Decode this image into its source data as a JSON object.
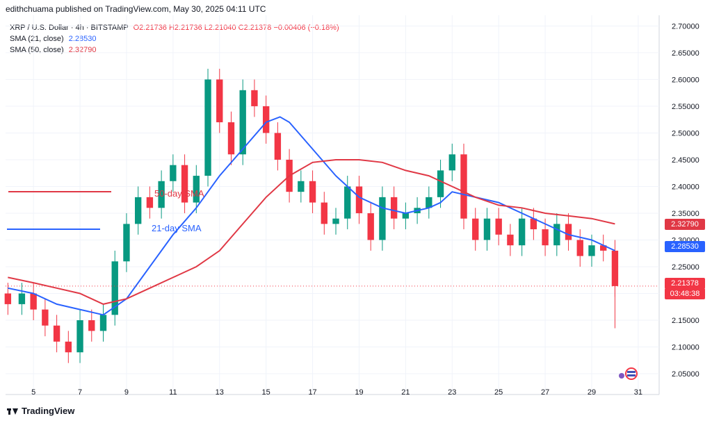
{
  "header": {
    "publisher": "edithchuama published on TradingView.com, May 30, 2025 04:11 UTC"
  },
  "legend": {
    "symbol": "XRP / U.S. Dollar · 4h · BITSTAMP",
    "ohlc": "O2.21736  H2.21736  L2.21040  C2.21378  −0.00406 (−0.18%)",
    "sma21_label": "SMA (21, close)",
    "sma21_value": "2.28530",
    "sma50_label": "SMA (50, close)",
    "sma50_value": "2.32790"
  },
  "colors": {
    "up": "#089981",
    "down": "#f23645",
    "sma21": "#2962ff",
    "sma50": "#e03845",
    "current_price": "#f23645",
    "grid": "#f0f3fa",
    "axis_text": "#131722"
  },
  "price_tags": {
    "sma50": "2.32790",
    "sma21": "2.28530",
    "last_price": "2.21378",
    "countdown": "03:48:38"
  },
  "annotations": {
    "sma50_label": "50-day SMA",
    "sma21_label": "21-day SMA"
  },
  "footer": {
    "brand": "TradingView"
  },
  "chart_data": {
    "type": "candlestick",
    "title": "XRP / U.S. Dollar · 4h · BITSTAMP",
    "x_ticks": [
      "5",
      "7",
      "9",
      "11",
      "13",
      "15",
      "17",
      "19",
      "21",
      "23",
      "25",
      "27",
      "29",
      "31"
    ],
    "x_tick_day": [
      5,
      7,
      9,
      11,
      13,
      15,
      17,
      19,
      21,
      23,
      25,
      27,
      29,
      31
    ],
    "x_range_day": [
      3.8,
      31.9
    ],
    "y_ticks": [
      "2.05000",
      "2.10000",
      "2.15000",
      "2.20000",
      "2.25000",
      "2.30000",
      "2.35000",
      "2.40000",
      "2.45000",
      "2.50000",
      "2.55000",
      "2.60000",
      "2.65000",
      "2.70000"
    ],
    "y_range": [
      2.015,
      2.72
    ],
    "grid": true,
    "current_price": 2.21378,
    "closes": [
      {
        "day": 3.9,
        "close": 2.18
      },
      {
        "day": 4.5,
        "close": 2.2
      },
      {
        "day": 5.0,
        "close": 2.17
      },
      {
        "day": 5.5,
        "close": 2.14
      },
      {
        "day": 6.0,
        "close": 2.11
      },
      {
        "day": 6.5,
        "close": 2.09
      },
      {
        "day": 7.0,
        "close": 2.15
      },
      {
        "day": 7.5,
        "close": 2.13
      },
      {
        "day": 8.0,
        "close": 2.16
      },
      {
        "day": 8.5,
        "close": 2.26
      },
      {
        "day": 9.0,
        "close": 2.33
      },
      {
        "day": 9.5,
        "close": 2.38
      },
      {
        "day": 10.0,
        "close": 2.36
      },
      {
        "day": 10.5,
        "close": 2.41
      },
      {
        "day": 11.0,
        "close": 2.44
      },
      {
        "day": 11.5,
        "close": 2.37
      },
      {
        "day": 12.0,
        "close": 2.42
      },
      {
        "day": 12.5,
        "close": 2.6
      },
      {
        "day": 13.0,
        "close": 2.52
      },
      {
        "day": 13.5,
        "close": 2.46
      },
      {
        "day": 14.0,
        "close": 2.58
      },
      {
        "day": 14.5,
        "close": 2.55
      },
      {
        "day": 15.0,
        "close": 2.5
      },
      {
        "day": 15.5,
        "close": 2.45
      },
      {
        "day": 16.0,
        "close": 2.39
      },
      {
        "day": 16.5,
        "close": 2.41
      },
      {
        "day": 17.0,
        "close": 2.37
      },
      {
        "day": 17.5,
        "close": 2.33
      },
      {
        "day": 18.0,
        "close": 2.34
      },
      {
        "day": 18.5,
        "close": 2.4
      },
      {
        "day": 19.0,
        "close": 2.35
      },
      {
        "day": 19.5,
        "close": 2.3
      },
      {
        "day": 20.0,
        "close": 2.38
      },
      {
        "day": 20.5,
        "close": 2.34
      },
      {
        "day": 21.0,
        "close": 2.35
      },
      {
        "day": 21.5,
        "close": 2.36
      },
      {
        "day": 22.0,
        "close": 2.38
      },
      {
        "day": 22.5,
        "close": 2.43
      },
      {
        "day": 23.0,
        "close": 2.46
      },
      {
        "day": 23.5,
        "close": 2.34
      },
      {
        "day": 24.0,
        "close": 2.3
      },
      {
        "day": 24.5,
        "close": 2.34
      },
      {
        "day": 25.0,
        "close": 2.31
      },
      {
        "day": 25.5,
        "close": 2.29
      },
      {
        "day": 26.0,
        "close": 2.34
      },
      {
        "day": 26.5,
        "close": 2.32
      },
      {
        "day": 27.0,
        "close": 2.29
      },
      {
        "day": 27.5,
        "close": 2.33
      },
      {
        "day": 28.0,
        "close": 2.3
      },
      {
        "day": 28.5,
        "close": 2.27
      },
      {
        "day": 29.0,
        "close": 2.29
      },
      {
        "day": 29.5,
        "close": 2.28
      },
      {
        "day": 30.0,
        "close": 2.21378
      }
    ],
    "low_wick": {
      "day": 30.0,
      "low": 2.135
    },
    "series": [
      {
        "name": "SMA (21, close)",
        "points": [
          [
            3.9,
            2.21
          ],
          [
            5.0,
            2.2
          ],
          [
            6.0,
            2.18
          ],
          [
            7.0,
            2.17
          ],
          [
            8.0,
            2.16
          ],
          [
            9.0,
            2.19
          ],
          [
            10.0,
            2.25
          ],
          [
            11.0,
            2.31
          ],
          [
            12.0,
            2.36
          ],
          [
            13.0,
            2.42
          ],
          [
            14.0,
            2.47
          ],
          [
            15.0,
            2.52
          ],
          [
            15.6,
            2.53
          ],
          [
            16.0,
            2.52
          ],
          [
            17.0,
            2.47
          ],
          [
            18.0,
            2.42
          ],
          [
            19.0,
            2.38
          ],
          [
            20.0,
            2.36
          ],
          [
            21.0,
            2.35
          ],
          [
            22.0,
            2.36
          ],
          [
            22.5,
            2.37
          ],
          [
            23.0,
            2.39
          ],
          [
            24.0,
            2.38
          ],
          [
            25.0,
            2.37
          ],
          [
            26.0,
            2.35
          ],
          [
            27.0,
            2.33
          ],
          [
            28.0,
            2.31
          ],
          [
            29.0,
            2.3
          ],
          [
            30.0,
            2.28
          ]
        ]
      },
      {
        "name": "SMA (50, close)",
        "points": [
          [
            3.9,
            2.23
          ],
          [
            5.0,
            2.22
          ],
          [
            6.0,
            2.21
          ],
          [
            7.0,
            2.2
          ],
          [
            8.0,
            2.18
          ],
          [
            9.0,
            2.19
          ],
          [
            10.0,
            2.21
          ],
          [
            11.0,
            2.23
          ],
          [
            12.0,
            2.25
          ],
          [
            13.0,
            2.28
          ],
          [
            14.0,
            2.33
          ],
          [
            15.0,
            2.38
          ],
          [
            16.0,
            2.42
          ],
          [
            17.0,
            2.445
          ],
          [
            18.0,
            2.45
          ],
          [
            19.0,
            2.45
          ],
          [
            20.0,
            2.445
          ],
          [
            21.0,
            2.43
          ],
          [
            22.0,
            2.42
          ],
          [
            23.0,
            2.4
          ],
          [
            24.0,
            2.38
          ],
          [
            25.0,
            2.365
          ],
          [
            26.0,
            2.36
          ],
          [
            27.0,
            2.35
          ],
          [
            28.0,
            2.345
          ],
          [
            29.0,
            2.34
          ],
          [
            30.0,
            2.33
          ]
        ]
      }
    ]
  }
}
